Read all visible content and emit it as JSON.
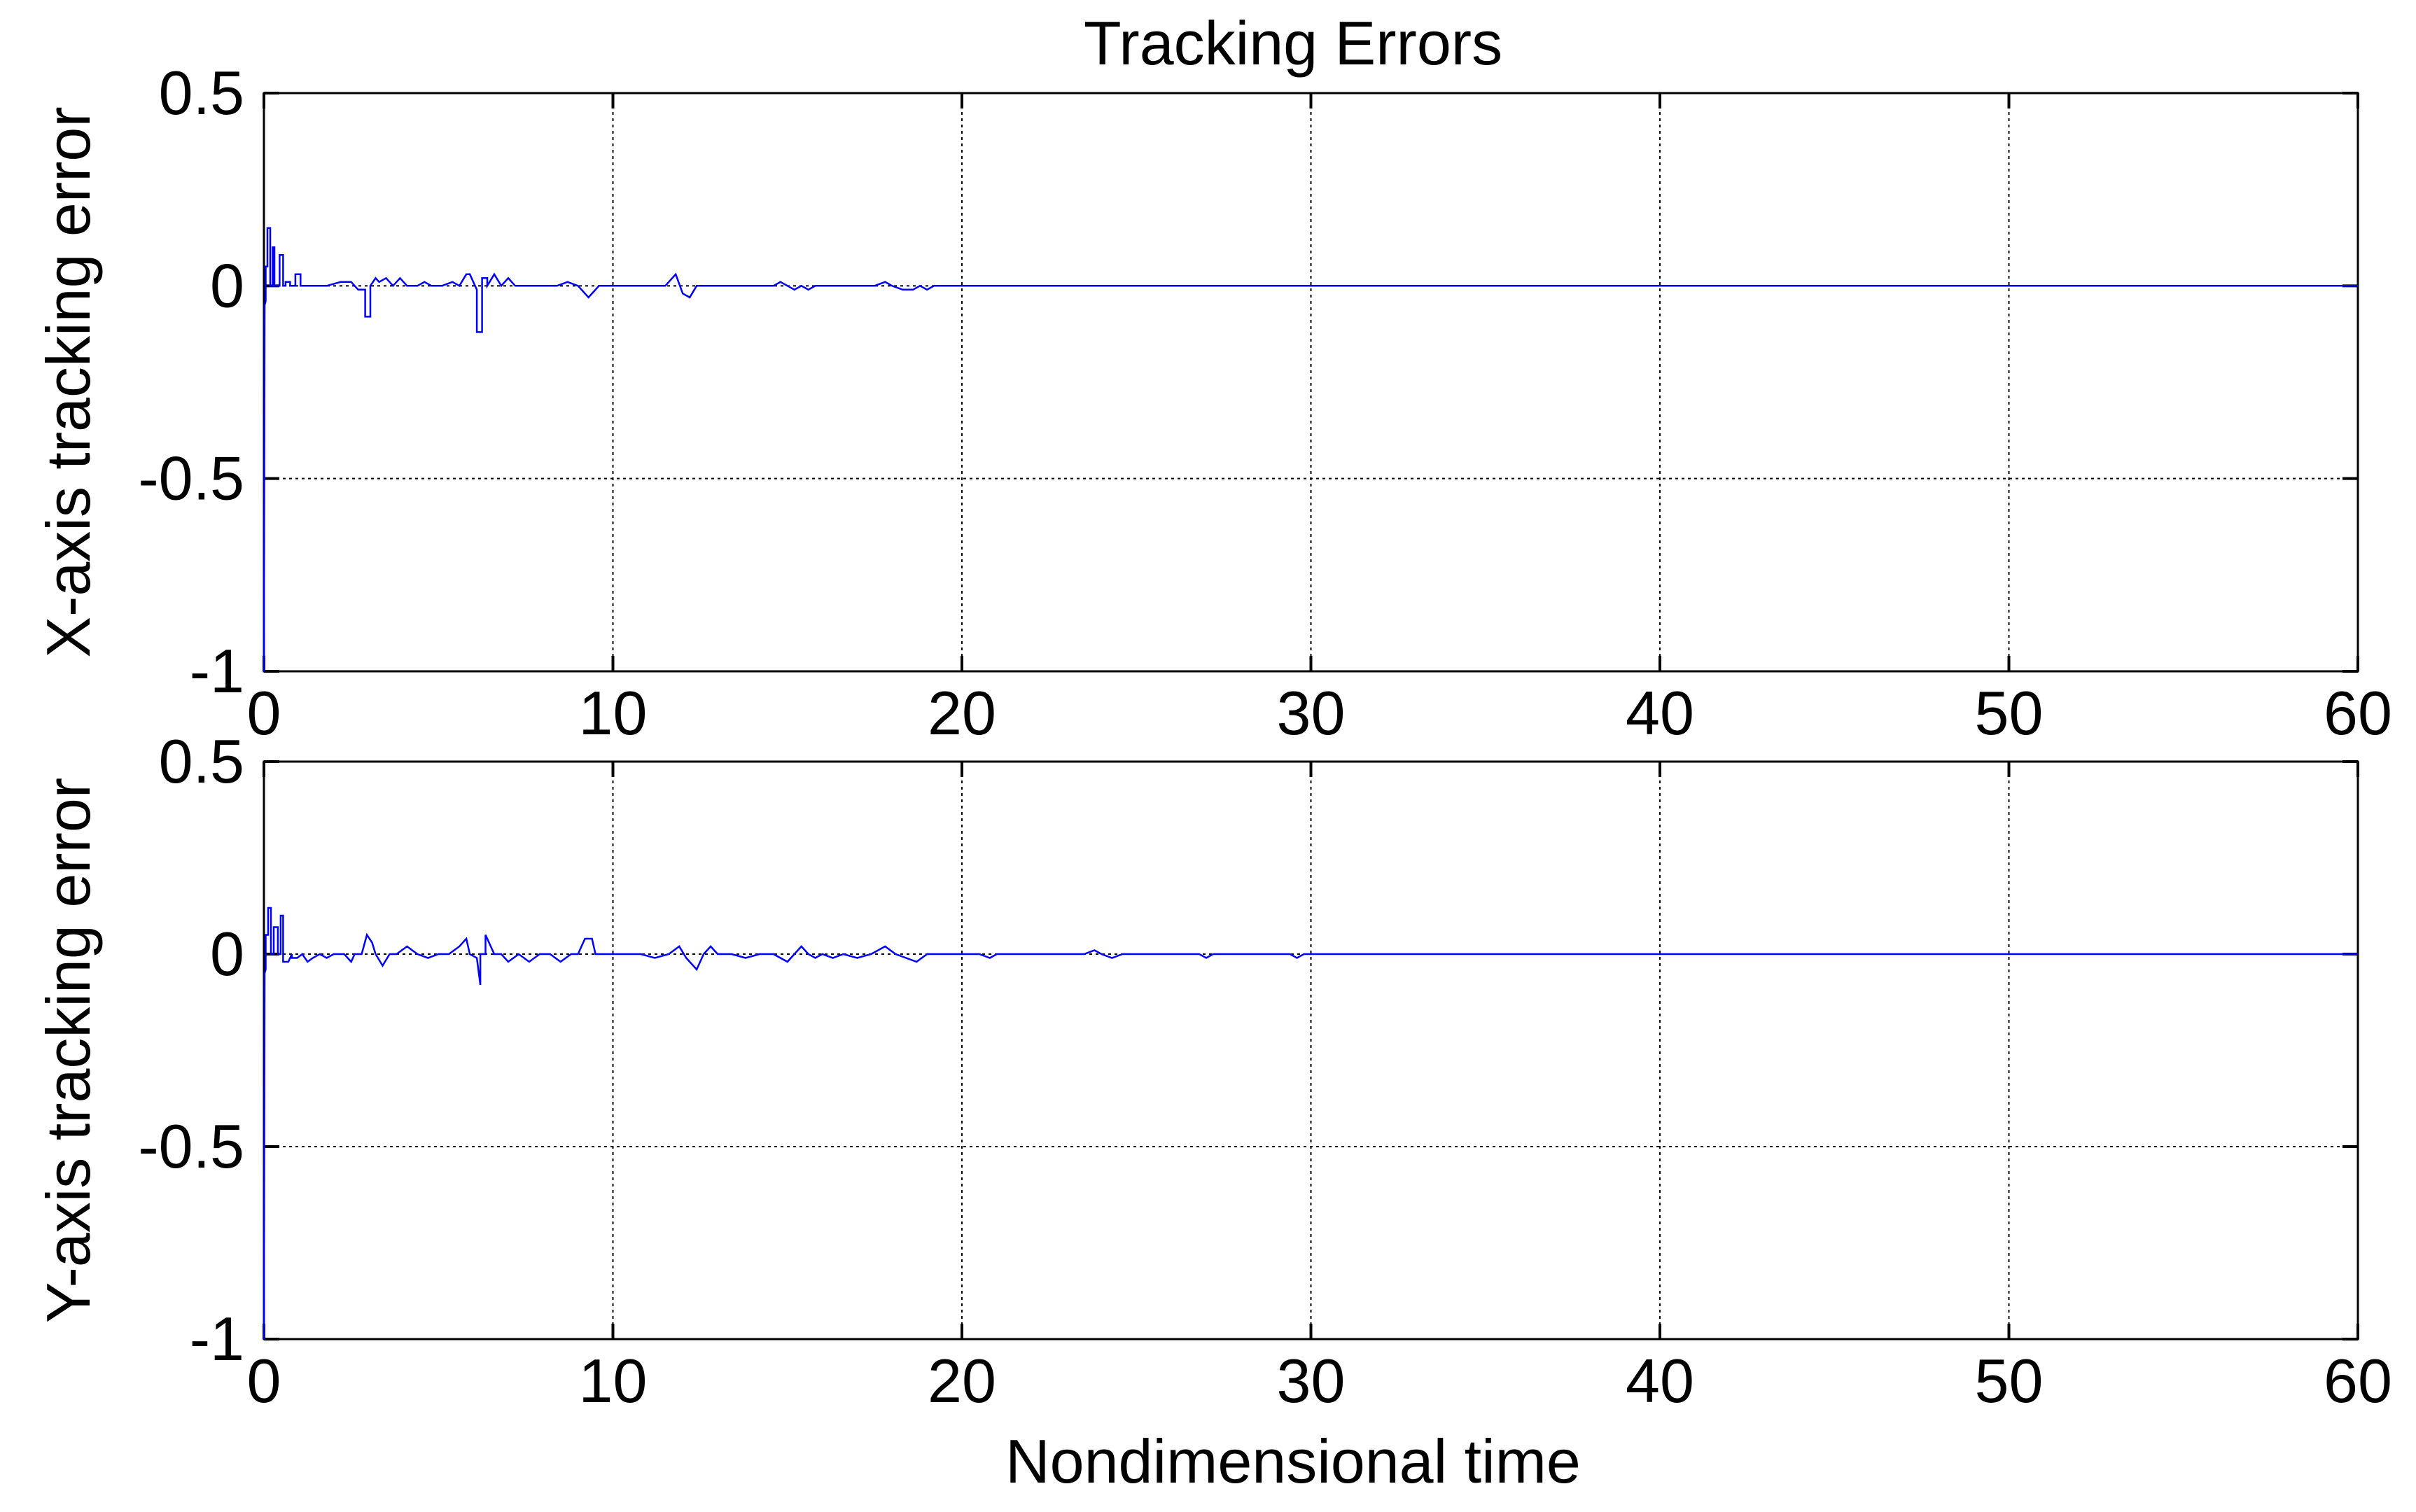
{
  "chart_data": [
    {
      "type": "line",
      "title": "Tracking Errors",
      "xlabel": "",
      "ylabel": "X-axis tracking error",
      "xlim": [
        0,
        60
      ],
      "ylim": [
        -1,
        0.5
      ],
      "xticks": [
        0,
        10,
        20,
        30,
        40,
        50,
        60
      ],
      "yticks": [
        0.5,
        0,
        -0.5,
        -1
      ],
      "xtick_labels": [
        "0",
        "10",
        "20",
        "30",
        "40",
        "50",
        "60"
      ],
      "ytick_labels": [
        "0.5",
        "0",
        "-0.5",
        "-1"
      ],
      "grid": true,
      "line_color": "#0000ff",
      "series": [
        {
          "x": [
            0,
            0.02,
            0.05,
            0.05,
            0.1,
            0.1,
            0.18,
            0.18,
            0.25,
            0.25,
            0.3,
            0.3,
            0.45,
            0.45,
            0.55,
            0.55,
            0.62,
            0.62,
            0.75,
            0.75,
            0.9,
            0.9,
            1.05,
            1.05,
            1.2,
            1.5,
            1.8,
            2.2,
            2.5,
            2.7,
            2.9,
            2.9,
            3.05,
            3.05,
            3.2,
            3.3,
            3.5,
            3.7,
            3.9,
            4.1,
            4.4,
            4.6,
            4.8,
            5.1,
            5.4,
            5.6,
            5.8,
            5.9,
            6.1,
            6.1,
            6.25,
            6.25,
            6.4,
            6.4,
            6.6,
            6.8,
            7.0,
            7.2,
            7.4,
            7.6,
            8.0,
            8.4,
            8.7,
            9.0,
            9.3,
            9.6,
            10.0,
            10.5,
            11.0,
            11.5,
            11.8,
            12.0,
            12.2,
            12.4,
            12.6,
            12.9,
            13.5,
            14.0,
            14.6,
            14.8,
            15.0,
            15.2,
            15.4,
            15.6,
            15.8,
            16.0,
            16.5,
            17.0,
            17.5,
            17.8,
            18.0,
            18.3,
            18.6,
            18.8,
            19.0,
            19.2,
            20.0,
            30.0,
            40.0,
            50.0,
            60.0
          ],
          "y": [
            -1,
            -0.05,
            -0.04,
            0.05,
            0.05,
            0.15,
            0.15,
            0.0,
            0.0,
            0.1,
            0.1,
            0.0,
            0.0,
            0.08,
            0.08,
            0.0,
            0.0,
            0.01,
            0.01,
            0.0,
            0.0,
            0.03,
            0.03,
            0.0,
            0.0,
            0.0,
            0.0,
            0.01,
            0.01,
            -0.01,
            -0.01,
            -0.08,
            -0.08,
            0.0,
            0.02,
            0.01,
            0.02,
            0.0,
            0.02,
            0.0,
            0.0,
            0.01,
            0.0,
            0.0,
            0.01,
            0.0,
            0.03,
            0.03,
            -0.01,
            -0.12,
            -0.12,
            0.02,
            0.02,
            0.0,
            0.03,
            0.0,
            0.02,
            0.0,
            0.0,
            0.0,
            0.0,
            0.0,
            0.01,
            0.0,
            -0.03,
            0.0,
            0.0,
            0.0,
            0.0,
            0.0,
            0.03,
            -0.02,
            -0.03,
            0.0,
            0.0,
            0.0,
            0.0,
            0.0,
            0.0,
            0.01,
            0.0,
            -0.01,
            0.0,
            -0.01,
            0.0,
            0.0,
            0.0,
            0.0,
            0.0,
            0.01,
            0.0,
            -0.01,
            -0.01,
            0.0,
            -0.01,
            0.0,
            0.0,
            0.0,
            0.0,
            0.0,
            0.0
          ]
        }
      ]
    },
    {
      "type": "line",
      "title": "",
      "xlabel": "Nondimensional time",
      "ylabel": "Y-axis tracking error",
      "xlim": [
        0,
        60
      ],
      "ylim": [
        -1,
        0.5
      ],
      "xticks": [
        0,
        10,
        20,
        30,
        40,
        50,
        60
      ],
      "yticks": [
        0.5,
        0,
        -0.5,
        -1
      ],
      "xtick_labels": [
        "0",
        "10",
        "20",
        "30",
        "40",
        "50",
        "60"
      ],
      "ytick_labels": [
        "0.5",
        "0",
        "-0.5",
        "-1"
      ],
      "grid": true,
      "line_color": "#0000ff",
      "series": [
        {
          "x": [
            0,
            0.02,
            0.05,
            0.05,
            0.12,
            0.12,
            0.2,
            0.2,
            0.28,
            0.28,
            0.4,
            0.4,
            0.48,
            0.48,
            0.55,
            0.55,
            0.7,
            0.8,
            0.8,
            0.95,
            1.1,
            1.25,
            1.4,
            1.6,
            1.8,
            2.0,
            2.3,
            2.5,
            2.6,
            2.8,
            2.95,
            3.1,
            3.2,
            3.4,
            3.6,
            3.8,
            4.1,
            4.4,
            4.7,
            5.0,
            5.3,
            5.6,
            5.8,
            5.9,
            6.1,
            6.2,
            6.2,
            6.35,
            6.35,
            6.6,
            6.8,
            7.0,
            7.3,
            7.6,
            7.9,
            8.2,
            8.5,
            8.8,
            9.0,
            9.2,
            9.4,
            9.5,
            9.7,
            10.0,
            10.4,
            10.8,
            11.2,
            11.6,
            11.9,
            12.1,
            12.3,
            12.4,
            12.6,
            12.8,
            13.0,
            13.4,
            13.8,
            14.2,
            14.6,
            15.0,
            15.2,
            15.4,
            15.6,
            15.8,
            16.0,
            16.3,
            16.6,
            17.0,
            17.4,
            17.8,
            18.1,
            18.4,
            18.7,
            19.0,
            20.5,
            20.8,
            21.0,
            23.0,
            23.5,
            23.8,
            24.0,
            24.3,
            24.6,
            24.8,
            26.8,
            27.0,
            27.2,
            29.4,
            29.6,
            29.8,
            40.0,
            50.0,
            60.0
          ],
          "y": [
            -1,
            -0.05,
            -0.04,
            0.05,
            0.05,
            0.12,
            0.12,
            0.0,
            0.0,
            0.07,
            0.07,
            0.0,
            0.0,
            0.1,
            0.1,
            -0.02,
            -0.02,
            0.0,
            -0.01,
            -0.01,
            0.0,
            -0.02,
            -0.01,
            0.0,
            -0.01,
            0.0,
            0.0,
            -0.02,
            0.0,
            0.0,
            0.05,
            0.03,
            0.0,
            -0.03,
            0.0,
            0.0,
            0.02,
            0.0,
            -0.01,
            0.0,
            0.0,
            0.02,
            0.04,
            0.0,
            -0.01,
            -0.08,
            0.0,
            0.0,
            0.05,
            0.0,
            0.0,
            -0.02,
            0.0,
            -0.02,
            0.0,
            0.0,
            -0.02,
            0.0,
            0.0,
            0.04,
            0.04,
            0.0,
            0.0,
            0.0,
            0.0,
            0.0,
            -0.01,
            0.0,
            0.02,
            -0.01,
            -0.03,
            -0.04,
            0.0,
            0.02,
            0.0,
            0.0,
            -0.01,
            0.0,
            0.0,
            -0.02,
            0.0,
            0.02,
            0.0,
            -0.01,
            0.0,
            -0.01,
            0.0,
            -0.01,
            0.0,
            0.02,
            0.0,
            -0.01,
            -0.02,
            0.0,
            0.0,
            -0.01,
            0.0,
            0.0,
            0.0,
            0.01,
            0.0,
            -0.01,
            0.0,
            0.0,
            0.0,
            -0.01,
            0.0,
            0.0,
            -0.01,
            0.0,
            0.0,
            0.0,
            0.0
          ]
        }
      ]
    }
  ]
}
